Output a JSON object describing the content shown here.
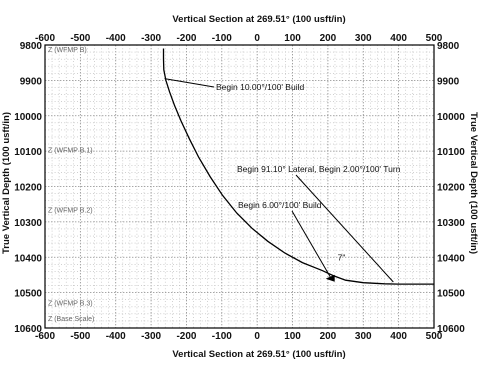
{
  "chart_data": {
    "type": "line",
    "title_top": "Vertical Section at 269.51° (100 usft/in)",
    "title_bottom": "Vertical Section at 269.51° (100 usft/in)",
    "ylabel_left": "True Vertical Depth (100 usft/in)",
    "ylabel_right": "True Vertical Depth (100 usft/in)",
    "xlim": [
      -600,
      500
    ],
    "ylim": [
      9800,
      10600
    ],
    "y_inverted": true,
    "grid": true,
    "x_ticks": [
      -600,
      -500,
      -400,
      -300,
      -200,
      -100,
      0,
      100,
      200,
      300,
      400,
      500
    ],
    "y_ticks": [
      9800,
      9900,
      10000,
      10100,
      10200,
      10300,
      10400,
      10500,
      10600
    ],
    "series": [
      {
        "name": "",
        "x": [
          -265,
          -265,
          -264,
          -258,
          -248,
          -234,
          -215,
          -192,
          -165,
          -133,
          -98,
          -58,
          -15,
          30,
          78,
          128,
          160,
          185,
          200,
          215,
          250,
          300,
          360,
          400,
          425
        ],
        "y": [
          9810,
          9840,
          9870,
          9900,
          9932,
          9970,
          10015,
          10065,
          10118,
          10172,
          10225,
          10275,
          10318,
          10355,
          10388,
          10415,
          10428,
          10438,
          10445,
          10452,
          10465,
          10472,
          10475,
          10476,
          10476
        ]
      }
    ],
    "annotations": [
      {
        "text": "Begin 10.00°/100' Build",
        "at": [
          -262,
          9895
        ]
      },
      {
        "text": "Begin 91.10° Lateral, Begin 2.00°/100' Turn",
        "at": [
          385,
          10470
        ]
      },
      {
        "text": "Begin 6.00°/100' Build",
        "at": [
          208,
          10458
        ]
      }
    ],
    "marker_label": "7\"",
    "formation_labels": [
      "Z (WFMP B)",
      "Z (WFMP B.1)",
      "Z (WFMP B.2)",
      "Z (WFMP B.3)",
      "Z (Base Scale)"
    ]
  }
}
